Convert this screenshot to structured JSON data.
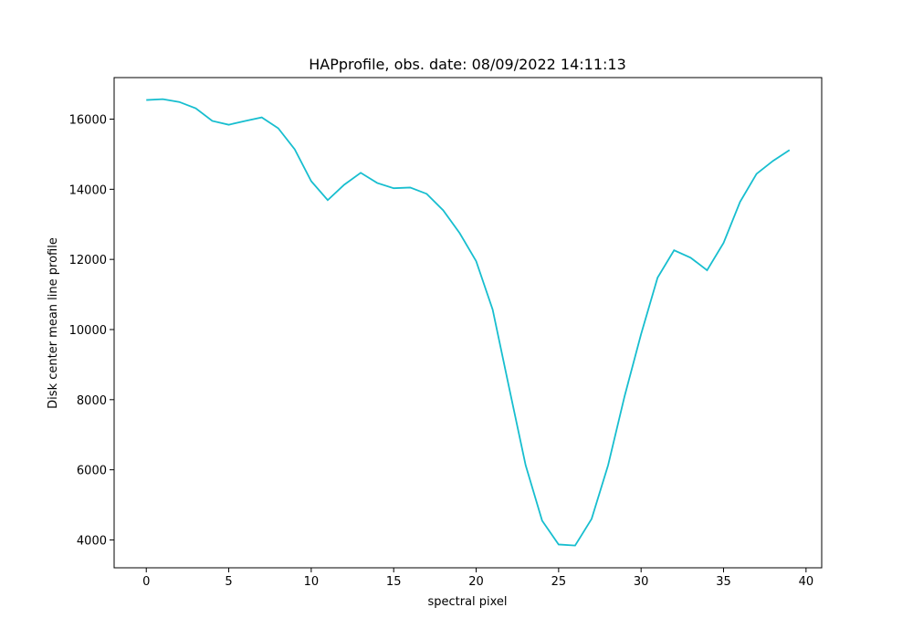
{
  "chart_data": {
    "type": "line",
    "title": "HAPprofile, obs. date: 08/09/2022 14:11:13",
    "xlabel": "spectral pixel",
    "ylabel": "Disk center mean line profile",
    "x": [
      0,
      1,
      2,
      3,
      4,
      5,
      6,
      7,
      8,
      9,
      10,
      11,
      12,
      13,
      14,
      15,
      16,
      17,
      18,
      19,
      20,
      21,
      22,
      23,
      24,
      25,
      26,
      27,
      28,
      29,
      30,
      31,
      32,
      33,
      34,
      35,
      36,
      37,
      38,
      39
    ],
    "series": [
      {
        "name": "HAPprofile",
        "color": "#17becf",
        "values": [
          16545,
          16570,
          16490,
          16310,
          15950,
          15840,
          15950,
          16050,
          15740,
          15140,
          14230,
          13690,
          14130,
          14470,
          14180,
          14030,
          14050,
          13870,
          13400,
          12750,
          11950,
          10570,
          8340,
          6130,
          4550,
          3870,
          3840,
          4600,
          6130,
          8100,
          9870,
          11480,
          12260,
          12050,
          11690,
          12470,
          13640,
          14440,
          14810,
          15120
        ]
      }
    ],
    "xlim": [
      -1.95,
      40.95
    ],
    "xticks": [
      0,
      5,
      10,
      15,
      20,
      25,
      30,
      35,
      40
    ],
    "ylim": [
      3205,
      17185
    ],
    "yticks": [
      4000,
      6000,
      8000,
      10000,
      12000,
      14000,
      16000
    ],
    "grid": false
  }
}
